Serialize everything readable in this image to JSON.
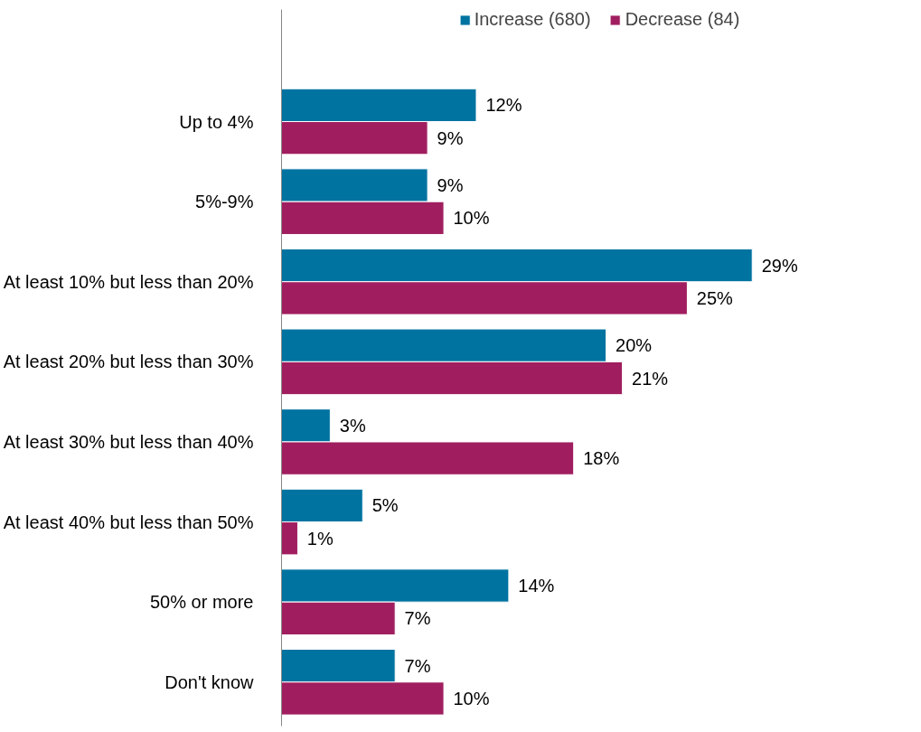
{
  "chart_data": {
    "type": "bar",
    "orientation": "horizontal",
    "legend": "top",
    "categories": [
      "Up to 4%",
      "5%-9%",
      "At least 10% but less than 20%",
      "At least 20% but less than 30%",
      "At least 30% but less than 40%",
      "At least 40% but less than 50%",
      "50% or more",
      "Don't know"
    ],
    "series": [
      {
        "name": "Increase (680)",
        "color": "#0073a0",
        "values": [
          12,
          9,
          29,
          20,
          3,
          5,
          14,
          7
        ],
        "value_labels": [
          "12%",
          "9%",
          "29%",
          "20%",
          "3%",
          "5%",
          "14%",
          "7%"
        ]
      },
      {
        "name": "Decrease (84)",
        "color": "#a01e5f",
        "values": [
          9,
          10,
          25,
          21,
          18,
          1,
          7,
          10
        ],
        "value_labels": [
          "9%",
          "10%",
          "25%",
          "21%",
          "18%",
          "1%",
          "7%",
          "10%"
        ]
      }
    ]
  }
}
